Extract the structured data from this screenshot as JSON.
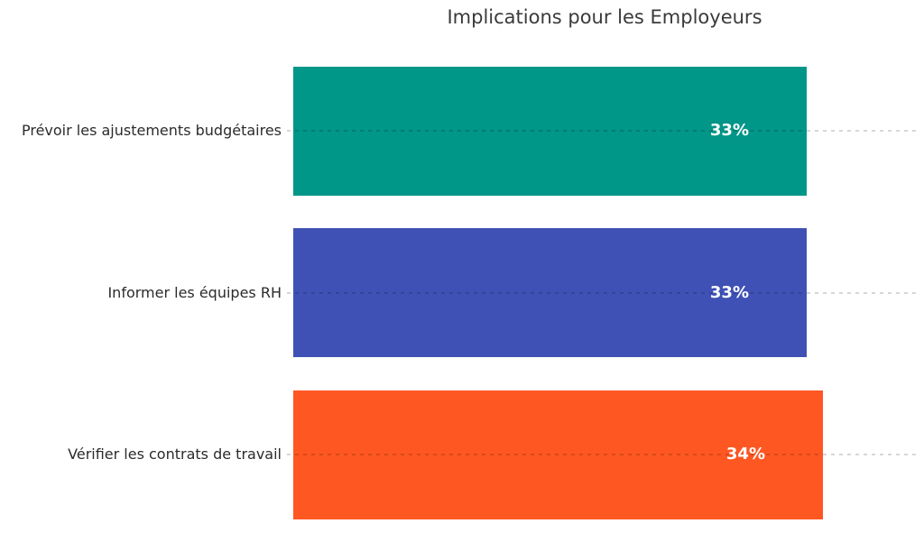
{
  "chart_data": {
    "type": "bar",
    "orientation": "horizontal",
    "title": "Implications pour les Employeurs",
    "categories": [
      "Prévoir les ajustements budgétaires",
      "Informer les équipes RH",
      "Vérifier les contrats de travail"
    ],
    "values": [
      33,
      33,
      34
    ],
    "value_labels": [
      "33%",
      "33%",
      "34%"
    ],
    "colors": [
      "#009688",
      "#3F51B5",
      "#FF5722"
    ],
    "xlim": [
      0,
      40
    ],
    "xlabel": "",
    "ylabel": "",
    "legend": "none",
    "grid": "dashed horizontal line through each bar center",
    "background": "#ffffff",
    "label_text_color": "#2b2b2b",
    "title_text_color": "#3a3a3a",
    "value_text_color": "#ffffff"
  }
}
